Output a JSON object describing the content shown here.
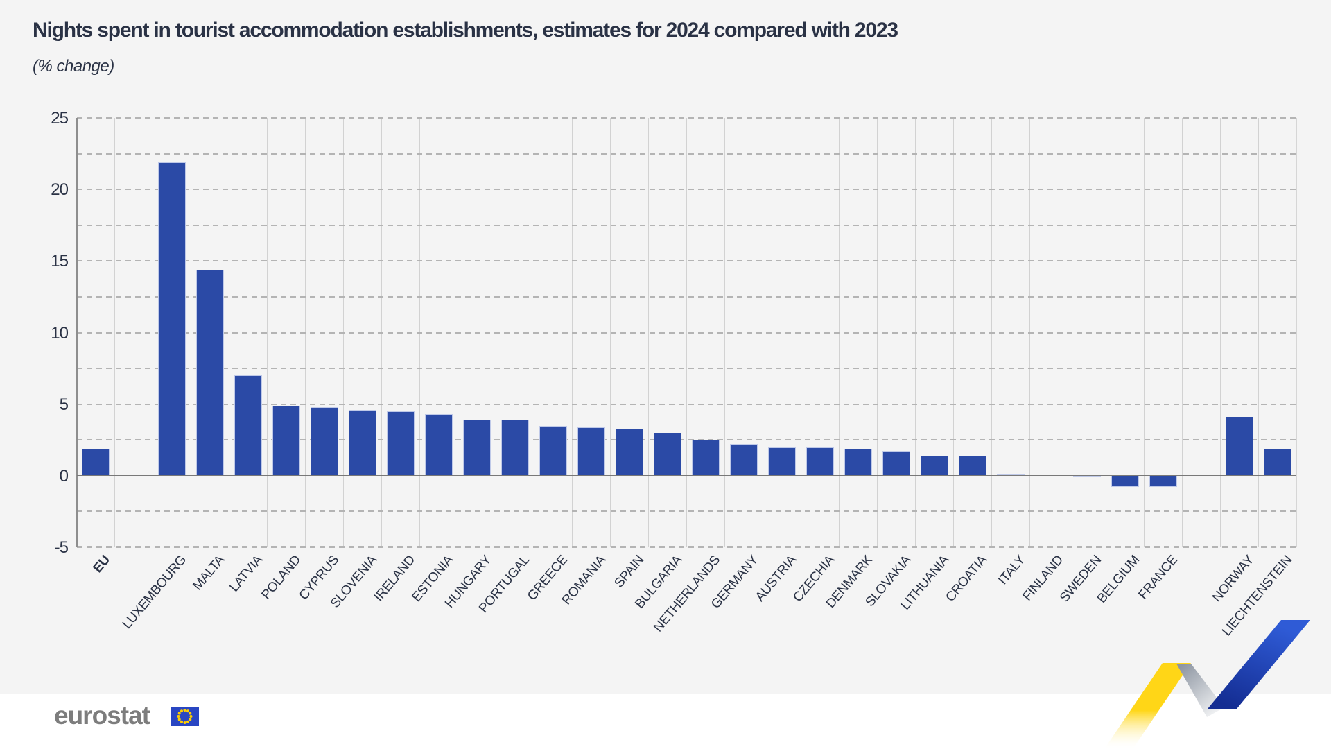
{
  "title": "Nights spent in tourist accommodation establishments, estimates for 2024 compared with 2023",
  "subtitle": "(% change)",
  "logo": {
    "text": "eurostat"
  },
  "colors": {
    "panel_background": "#f4f4f4",
    "bar": "#2b4aa6",
    "bar_border": "#bfc9e8",
    "title_text": "#2a3245",
    "grid_dashed": "#b4b4b4",
    "grid_vertical": "#d2d2d2",
    "zero_line": "#787878",
    "axis_line": "#8e8e8e",
    "logo_gray": "#7d7d7d",
    "flag_blue": "#2946c2",
    "star_yellow": "#ffcf00",
    "ribbon_yellow": "#ffd617",
    "ribbon_blue_light": "#2f5bd6",
    "ribbon_blue_dark": "#142d92",
    "ribbon_gray": "#8e96a2"
  },
  "chart_data": {
    "type": "bar",
    "title": "Nights spent in tourist accommodation establishments, estimates for 2024 compared with 2023",
    "subtitle": "(% change)",
    "xlabel": "",
    "ylabel": "% change",
    "ylim": [
      -5,
      25
    ],
    "yticks": [
      25,
      20,
      15,
      10,
      5,
      0,
      -5
    ],
    "grid_interval": 2.5,
    "grid": "dashed-horizontal, solid-vertical",
    "legend": "none",
    "bar_color": "#2b4aa6",
    "emphasis": [
      "EU"
    ],
    "categories": [
      "EU",
      "",
      "LUXEMBOURG",
      "MALTA",
      "LATVIA",
      "POLAND",
      "CYPRUS",
      "SLOVENIA",
      "IRELAND",
      "ESTONIA",
      "HUNGARY",
      "PORTUGAL",
      "GREECE",
      "ROMANIA",
      "SPAIN",
      "BULGARIA",
      "NETHERLANDS",
      "GERMANY",
      "AUSTRIA",
      "CZECHIA",
      "DENMARK",
      "SLOVAKIA",
      "LITHUANIA",
      "CROATIA",
      "ITALY",
      "FINLAND",
      "SWEDEN",
      "BELGIUM",
      "FRANCE",
      "",
      "NORWAY",
      "LIECHTENSTEIN"
    ],
    "values": [
      1.9,
      null,
      21.9,
      14.4,
      7.0,
      4.9,
      4.8,
      4.6,
      4.5,
      4.3,
      3.9,
      3.9,
      3.5,
      3.4,
      3.3,
      3.0,
      2.5,
      2.2,
      2.0,
      2.0,
      1.9,
      1.7,
      1.4,
      1.4,
      0.1,
      0.0,
      -0.1,
      -0.8,
      -0.8,
      null,
      4.1,
      1.9
    ]
  }
}
